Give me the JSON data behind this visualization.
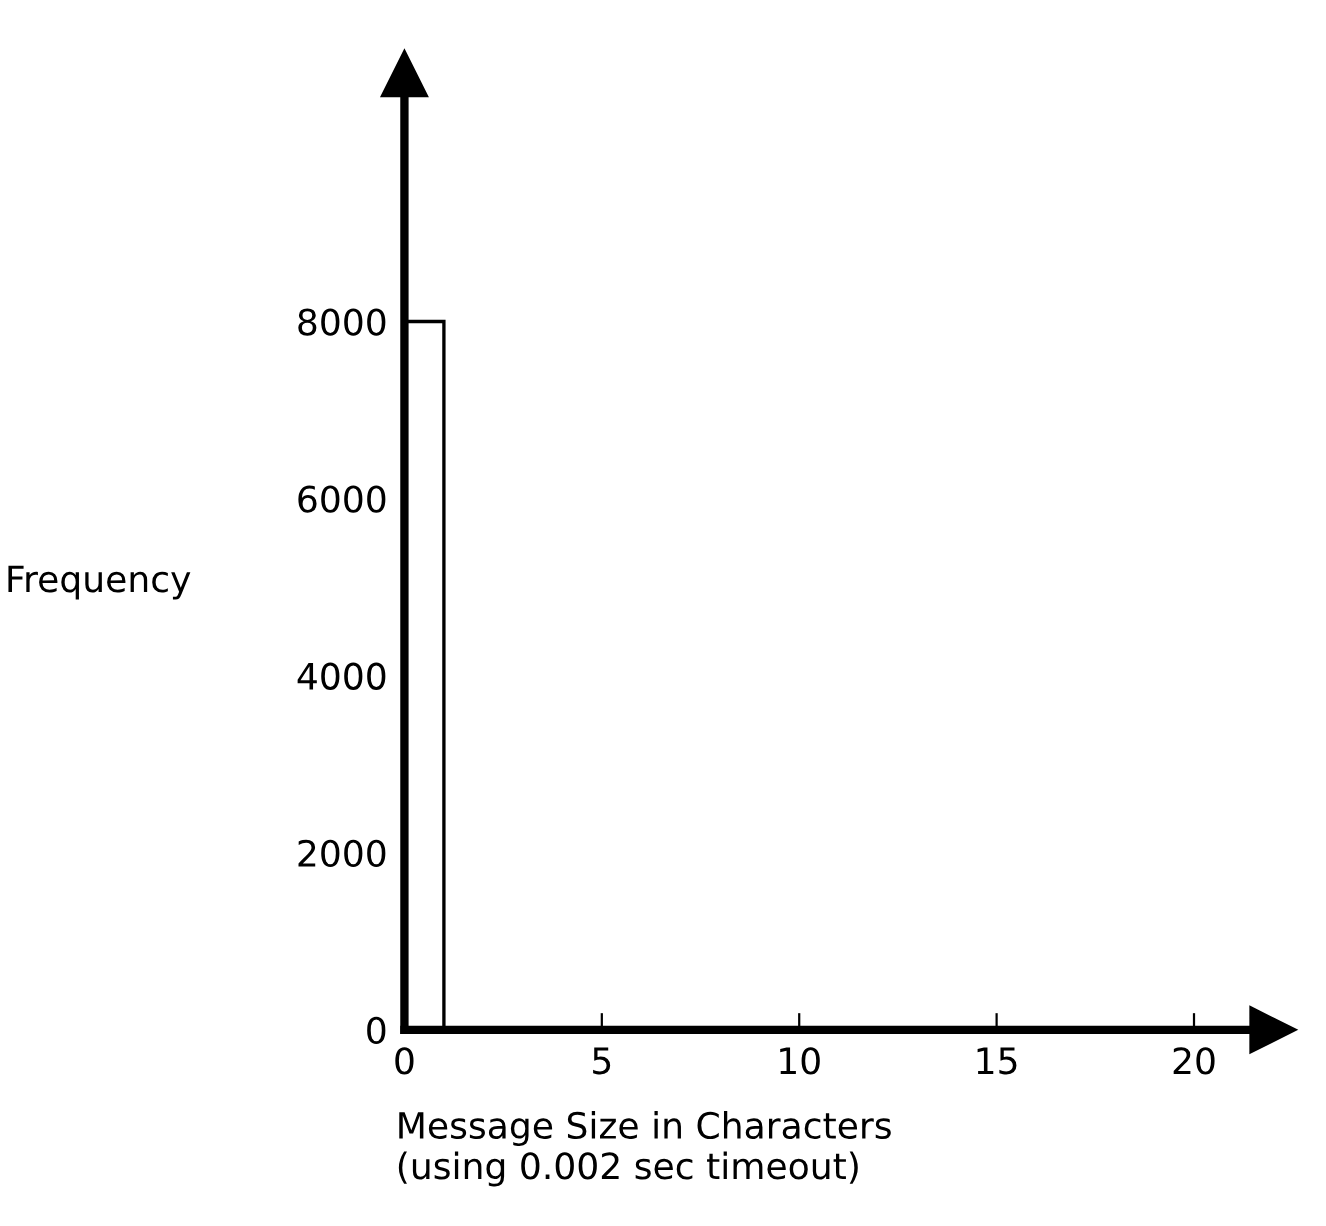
{
  "chart_data": {
    "type": "histogram",
    "xlabel": "Message Size in Characters\n(using 0.002 sec timeout)",
    "ylabel": "Frequency",
    "bins": [
      0,
      1
    ],
    "values": [
      8000
    ],
    "color": "#ffffff",
    "xlim": [
      0,
      22
    ],
    "ylim": [
      0,
      10800
    ],
    "xticks": [
      0,
      5,
      10,
      15,
      20
    ],
    "yticks": [
      0,
      2000,
      4000,
      6000,
      8000
    ],
    "grid": false,
    "legend": false
  }
}
